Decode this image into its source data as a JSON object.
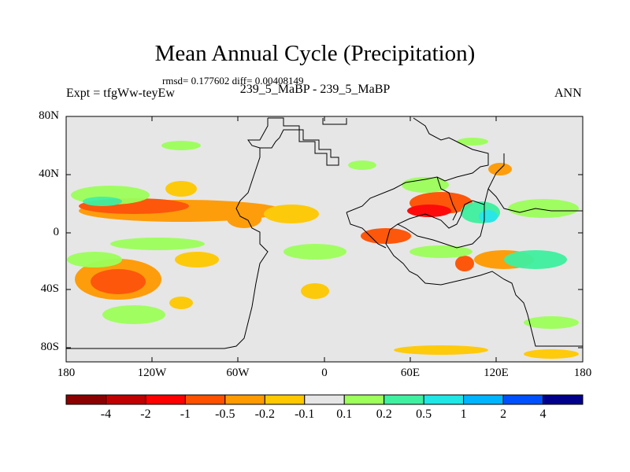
{
  "title": "Mean Annual Cycle (Precipitation)",
  "stats_text": "rmsd= 0.177602 diff= 0.00408149",
  "experiment_label": "Expt = tfgWw-teyEw",
  "cases_label": "239_5_MaBP - 239_5_MaBP",
  "season_label": "ANN",
  "lat_ticks": [
    "80N",
    "40N",
    "0",
    "40S",
    "80S"
  ],
  "lon_ticks": [
    "180",
    "120W",
    "60W",
    "0",
    "60E",
    "120E",
    "180"
  ],
  "colorbar": {
    "colors": [
      "#8b0000",
      "#c00000",
      "#ff0000",
      "#ff5000",
      "#ff9a00",
      "#ffc800",
      "#e6e6e6",
      "#9cff5a",
      "#3ff0a0",
      "#20e6e6",
      "#00b4ff",
      "#0050ff",
      "#00008b"
    ],
    "labels": [
      "-4",
      "-2",
      "-1",
      "-0.5",
      "-0.2",
      "-0.1",
      "0.1",
      "0.2",
      "0.5",
      "1",
      "2",
      "4"
    ]
  }
}
